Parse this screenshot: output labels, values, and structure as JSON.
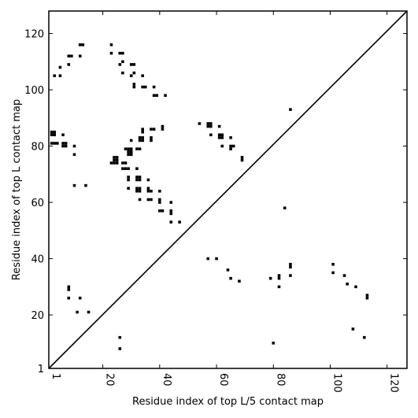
{
  "chart_data": {
    "type": "scatter",
    "title": "",
    "xlabel": "Residue index of top L/5 contact map",
    "ylabel": "Residue index of top L contact map",
    "xlim": [
      1,
      127
    ],
    "ylim": [
      1,
      128
    ],
    "x_ticks": [
      1,
      20,
      40,
      60,
      80,
      100,
      120
    ],
    "y_ticks": [
      1,
      20,
      40,
      60,
      80,
      100,
      120
    ],
    "x_tick_labels_rotated": true,
    "grid": false,
    "legend": "none",
    "diagonal_line": [
      [
        1,
        1
      ],
      [
        127,
        128
      ]
    ],
    "marker_color": "#000000",
    "series": [
      {
        "values_lower": [
          [
            8,
            30
          ],
          [
            8,
            29
          ],
          [
            8,
            26
          ],
          [
            12,
            26
          ],
          [
            11,
            21
          ],
          [
            15,
            21
          ],
          [
            26,
            12
          ],
          [
            26,
            8
          ],
          [
            57,
            40
          ],
          [
            60,
            40
          ],
          [
            64,
            36
          ],
          [
            65,
            33
          ],
          [
            68,
            32
          ],
          [
            79,
            33
          ],
          [
            80,
            10
          ],
          [
            82,
            34
          ],
          [
            82,
            33
          ],
          [
            82,
            30
          ],
          [
            86,
            38
          ],
          [
            86,
            37
          ],
          [
            86,
            34
          ],
          [
            101,
            38
          ],
          [
            101,
            35
          ],
          [
            105,
            34
          ],
          [
            106,
            31
          ],
          [
            108,
            15
          ],
          [
            109,
            30
          ],
          [
            112,
            12
          ],
          [
            113,
            27
          ],
          [
            113,
            26
          ],
          [
            84,
            58
          ]
        ],
        "values_upper": [
          [
            3,
            105
          ],
          [
            5,
            108
          ],
          [
            5,
            105
          ],
          [
            8,
            112
          ],
          [
            8,
            109
          ],
          [
            9,
            112
          ],
          [
            12,
            116
          ],
          [
            13,
            116
          ],
          [
            12,
            112
          ],
          [
            23,
            116
          ],
          [
            23,
            113
          ],
          [
            26,
            113
          ],
          [
            27,
            113
          ],
          [
            26,
            109
          ],
          [
            27,
            110
          ],
          [
            27,
            106
          ],
          [
            30,
            109
          ],
          [
            31,
            109
          ],
          [
            30,
            105
          ],
          [
            31,
            106
          ],
          [
            34,
            105
          ],
          [
            31,
            102
          ],
          [
            31,
            101
          ],
          [
            34,
            101
          ],
          [
            35,
            101
          ],
          [
            38,
            101
          ],
          [
            38,
            98
          ],
          [
            39,
            98
          ],
          [
            42,
            98
          ],
          [
            2,
            85
          ],
          [
            3,
            85
          ],
          [
            2,
            84
          ],
          [
            3,
            84
          ],
          [
            6,
            84
          ],
          [
            2,
            81
          ],
          [
            3,
            81
          ],
          [
            4,
            81
          ],
          [
            6,
            81
          ],
          [
            7,
            81
          ],
          [
            6,
            80
          ],
          [
            7,
            80
          ],
          [
            10,
            80
          ],
          [
            10,
            77
          ],
          [
            10,
            66
          ],
          [
            14,
            66
          ],
          [
            24,
            76
          ],
          [
            25,
            76
          ],
          [
            24,
            75
          ],
          [
            25,
            75
          ],
          [
            23,
            74
          ],
          [
            24,
            74
          ],
          [
            25,
            74
          ],
          [
            27,
            74
          ],
          [
            28,
            74
          ],
          [
            27,
            72
          ],
          [
            28,
            72
          ],
          [
            29,
            72
          ],
          [
            32,
            72
          ],
          [
            28,
            79
          ],
          [
            29,
            79
          ],
          [
            30,
            79
          ],
          [
            32,
            79
          ],
          [
            33,
            79
          ],
          [
            29,
            78
          ],
          [
            30,
            78
          ],
          [
            29,
            77
          ],
          [
            30,
            77
          ],
          [
            30,
            82
          ],
          [
            33,
            82
          ],
          [
            34,
            82
          ],
          [
            33,
            83
          ],
          [
            34,
            83
          ],
          [
            34,
            86
          ],
          [
            34,
            85
          ],
          [
            37,
            86
          ],
          [
            38,
            86
          ],
          [
            37,
            83
          ],
          [
            37,
            82
          ],
          [
            41,
            87
          ],
          [
            41,
            86
          ],
          [
            29,
            69
          ],
          [
            32,
            69
          ],
          [
            33,
            69
          ],
          [
            29,
            68
          ],
          [
            32,
            68
          ],
          [
            33,
            68
          ],
          [
            36,
            68
          ],
          [
            29,
            65
          ],
          [
            32,
            65
          ],
          [
            33,
            65
          ],
          [
            32,
            64
          ],
          [
            33,
            64
          ],
          [
            36,
            65
          ],
          [
            36,
            64
          ],
          [
            37,
            64
          ],
          [
            40,
            64
          ],
          [
            33,
            61
          ],
          [
            36,
            61
          ],
          [
            37,
            61
          ],
          [
            40,
            61
          ],
          [
            40,
            60
          ],
          [
            44,
            60
          ],
          [
            40,
            57
          ],
          [
            41,
            57
          ],
          [
            44,
            57
          ],
          [
            44,
            56
          ],
          [
            44,
            53
          ],
          [
            47,
            53
          ],
          [
            54,
            88
          ],
          [
            57,
            88
          ],
          [
            58,
            88
          ],
          [
            57,
            87
          ],
          [
            58,
            87
          ],
          [
            61,
            87
          ],
          [
            58,
            84
          ],
          [
            61,
            84
          ],
          [
            62,
            84
          ],
          [
            61,
            83
          ],
          [
            62,
            83
          ],
          [
            65,
            83
          ],
          [
            62,
            80
          ],
          [
            65,
            80
          ],
          [
            66,
            80
          ],
          [
            65,
            79
          ],
          [
            69,
            76
          ],
          [
            69,
            75
          ],
          [
            86,
            93
          ]
        ]
      }
    ]
  }
}
